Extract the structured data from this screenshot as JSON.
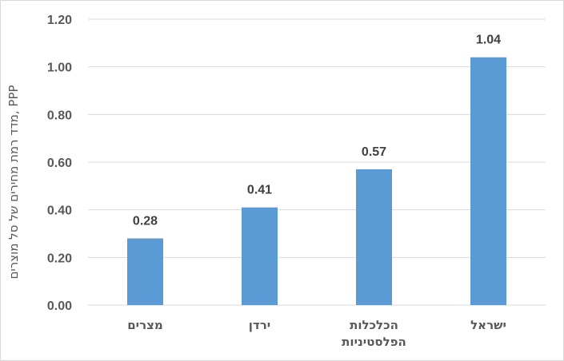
{
  "chart_data": {
    "type": "bar",
    "title": "",
    "xlabel": "",
    "ylabel": "מדד רמת מחירים של סל מוצרים, PPP",
    "categories": [
      [
        "מצרים"
      ],
      [
        "ירדן"
      ],
      [
        "הכלכלות",
        "הפלסטיניות"
      ],
      [
        "ישראל"
      ]
    ],
    "values": [
      0.28,
      0.41,
      0.57,
      1.04
    ],
    "data_labels": [
      "0.28",
      "0.41",
      "0.57",
      "1.04"
    ],
    "y_ticks": [
      "0.00",
      "0.20",
      "0.40",
      "0.60",
      "0.80",
      "1.00",
      "1.20"
    ],
    "ylim": [
      0,
      1.2
    ],
    "grid": true,
    "legend": "none",
    "colors": {
      "bar": "#5b9bd5",
      "grid": "#d9d9d9",
      "text": "#595959",
      "data_label": "#404040"
    }
  }
}
